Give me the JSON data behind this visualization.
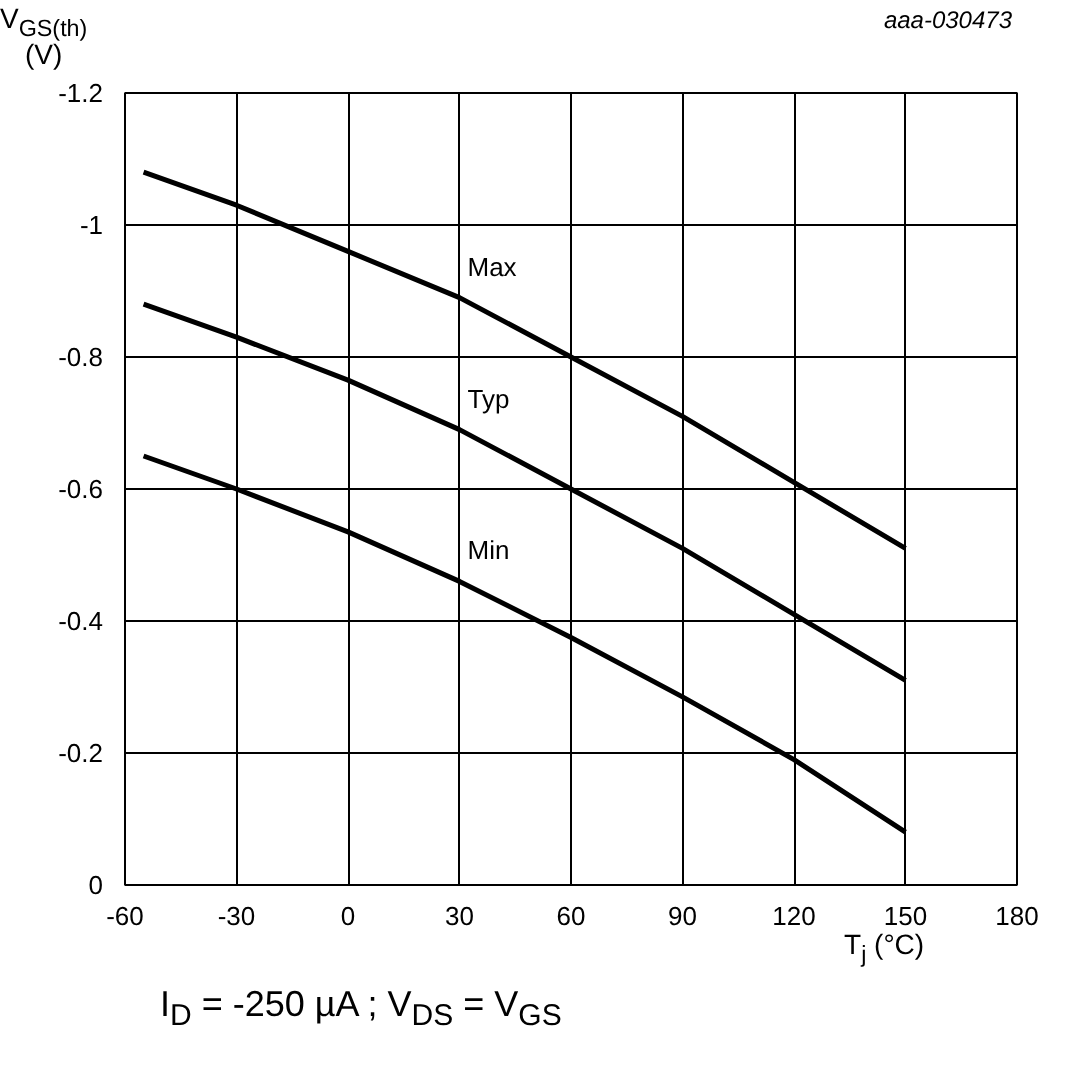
{
  "chart_data": {
    "type": "line",
    "xlabel": "T$_{j}$ (°C)",
    "ylabel": "V$_{GS(th)}$ (V)",
    "annotations": [
      "aaa-030473",
      "I$_{D}$ = -250 µA ; V$_{DS}$ = V$_{GS}$"
    ],
    "x": [
      -55,
      -30,
      0,
      30,
      60,
      90,
      120,
      150
    ],
    "series": [
      {
        "name": "Max",
        "color": "#000000",
        "values": [
          -1.08,
          -1.03,
          -0.96,
          -0.89,
          -0.8,
          -0.71,
          -0.61,
          -0.51
        ]
      },
      {
        "name": "Typ",
        "color": "#000000",
        "values": [
          -0.88,
          -0.83,
          -0.765,
          -0.69,
          -0.6,
          -0.51,
          -0.41,
          -0.31
        ]
      },
      {
        "name": "Min",
        "color": "#000000",
        "values": [
          -0.65,
          -0.6,
          -0.535,
          -0.46,
          -0.375,
          -0.285,
          -0.19,
          -0.08
        ]
      }
    ],
    "xlim": [
      -60,
      180
    ],
    "xticks": [
      -60,
      -30,
      0,
      30,
      60,
      90,
      120,
      150,
      180
    ],
    "ylim": [
      0,
      -1.2
    ],
    "yticks": [
      0,
      -0.2,
      -0.4,
      -0.6,
      -0.8,
      -1,
      -1.2
    ],
    "grid": true,
    "legend": false,
    "line_style": "solid",
    "marker": "none"
  }
}
